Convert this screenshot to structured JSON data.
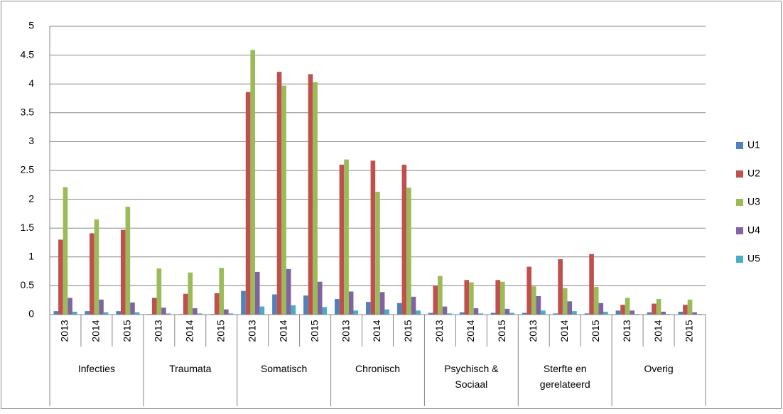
{
  "chart_data": {
    "type": "bar",
    "groups": [
      {
        "name": "Infecties",
        "categories": [
          "2013",
          "2014",
          "2015"
        ]
      },
      {
        "name": "Traumata",
        "categories": [
          "2013",
          "2014",
          "2015"
        ]
      },
      {
        "name": "Somatisch",
        "categories": [
          "2013",
          "2014",
          "2015"
        ]
      },
      {
        "name": "Chronisch",
        "categories": [
          "2013",
          "2014",
          "2015"
        ]
      },
      {
        "name": "Psychisch & Sociaal",
        "categories": [
          "2013",
          "2014",
          "2015"
        ]
      },
      {
        "name": "Sterfte en gerelateerd",
        "categories": [
          "2013",
          "2014",
          "2015"
        ]
      },
      {
        "name": "Overig",
        "categories": [
          "2013",
          "2014",
          "2015"
        ]
      }
    ],
    "series": [
      {
        "name": "U1",
        "color": "#4f81bd",
        "values": [
          0.06,
          0.06,
          0.06,
          0.01,
          0.01,
          0.01,
          0.41,
          0.35,
          0.33,
          0.27,
          0.22,
          0.2,
          0.03,
          0.04,
          0.03,
          0.03,
          0.02,
          0.02,
          0.07,
          0.04,
          0.05
        ]
      },
      {
        "name": "U2",
        "color": "#c0504d",
        "values": [
          1.3,
          1.41,
          1.47,
          0.29,
          0.36,
          0.37,
          3.86,
          4.21,
          4.17,
          2.6,
          2.67,
          2.6,
          0.5,
          0.6,
          0.6,
          0.83,
          0.96,
          1.05,
          0.17,
          0.19,
          0.17
        ]
      },
      {
        "name": "U3",
        "color": "#9bbb59",
        "values": [
          2.21,
          1.65,
          1.87,
          0.8,
          0.73,
          0.81,
          4.59,
          3.97,
          4.03,
          2.69,
          2.13,
          2.2,
          0.67,
          0.56,
          0.57,
          0.49,
          0.46,
          0.48,
          0.29,
          0.27,
          0.26
        ]
      },
      {
        "name": "U4",
        "color": "#8064a2",
        "values": [
          0.29,
          0.26,
          0.21,
          0.12,
          0.11,
          0.09,
          0.74,
          0.79,
          0.57,
          0.4,
          0.39,
          0.31,
          0.14,
          0.11,
          0.1,
          0.32,
          0.23,
          0.2,
          0.07,
          0.05,
          0.04
        ]
      },
      {
        "name": "U5",
        "color": "#4bacc6",
        "values": [
          0.05,
          0.04,
          0.04,
          0.02,
          0.02,
          0.02,
          0.14,
          0.16,
          0.13,
          0.07,
          0.09,
          0.07,
          0.02,
          0.02,
          0.03,
          0.07,
          0.06,
          0.05,
          0.01,
          0.01,
          0.01
        ]
      }
    ],
    "ylim": [
      0,
      5
    ],
    "yticks": [
      0,
      0.5,
      1,
      1.5,
      2,
      2.5,
      3,
      3.5,
      4,
      4.5,
      5
    ],
    "grid": true,
    "legend": "right"
  }
}
